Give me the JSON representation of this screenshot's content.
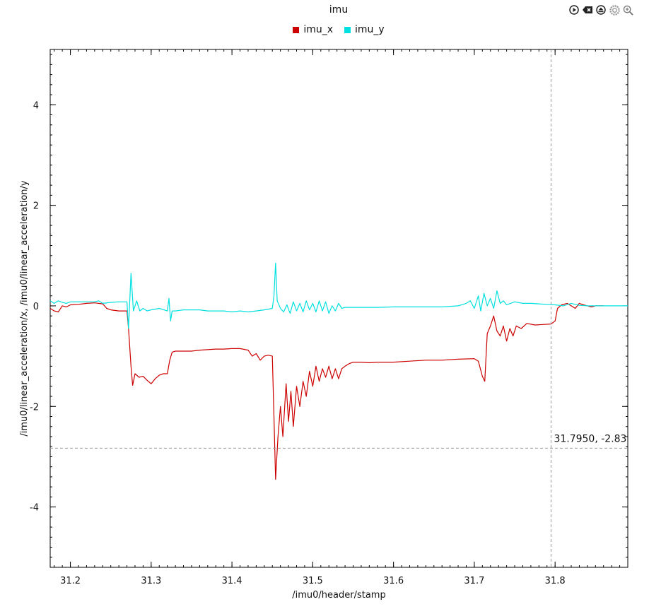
{
  "toolbar": {
    "icons": [
      "play-icon",
      "clear-icon",
      "eject-icon",
      "gear-icon",
      "zoom-icon"
    ]
  },
  "chart_data": {
    "type": "line",
    "title": "imu",
    "xlabel": "/imu0/header/stamp",
    "ylabel": "/imu0/linear_acceleration/x, /imu0/linear_acceleration/y",
    "xlim": [
      31.175,
      31.89
    ],
    "ylim": [
      -5.2,
      5.1
    ],
    "xticks": [
      31.2,
      31.3,
      31.4,
      31.5,
      31.6,
      31.7,
      31.8
    ],
    "xtick_labels": [
      "31.2",
      "31.3",
      "31.4",
      "31.5",
      "31.6",
      "31.7",
      "31.8"
    ],
    "yticks": [
      4,
      2,
      0,
      -2,
      -4
    ],
    "ytick_labels": [
      "4",
      "2",
      "0",
      "-2",
      "-4"
    ],
    "legend_position": "top-center",
    "grid": false,
    "crosshair": {
      "x": 31.795,
      "y": -2.83,
      "label": "31.7950, -2.83"
    },
    "series": [
      {
        "name": "imu_x",
        "color": "#cc0000",
        "points": [
          [
            31.175,
            -0.05
          ],
          [
            31.18,
            -0.1
          ],
          [
            31.185,
            -0.12
          ],
          [
            31.19,
            0.0
          ],
          [
            31.195,
            -0.02
          ],
          [
            31.2,
            0.02
          ],
          [
            31.21,
            0.03
          ],
          [
            31.22,
            0.05
          ],
          [
            31.23,
            0.06
          ],
          [
            31.24,
            0.04
          ],
          [
            31.245,
            -0.05
          ],
          [
            31.25,
            -0.08
          ],
          [
            31.26,
            -0.1
          ],
          [
            31.27,
            -0.1
          ],
          [
            31.272,
            -0.45
          ],
          [
            31.275,
            -1.2
          ],
          [
            31.277,
            -1.58
          ],
          [
            31.28,
            -1.35
          ],
          [
            31.285,
            -1.42
          ],
          [
            31.29,
            -1.4
          ],
          [
            31.295,
            -1.48
          ],
          [
            31.3,
            -1.55
          ],
          [
            31.305,
            -1.45
          ],
          [
            31.31,
            -1.38
          ],
          [
            31.315,
            -1.35
          ],
          [
            31.32,
            -1.35
          ],
          [
            31.323,
            -1.08
          ],
          [
            31.326,
            -0.92
          ],
          [
            31.33,
            -0.9
          ],
          [
            31.34,
            -0.9
          ],
          [
            31.35,
            -0.9
          ],
          [
            31.36,
            -0.88
          ],
          [
            31.37,
            -0.87
          ],
          [
            31.38,
            -0.86
          ],
          [
            31.39,
            -0.86
          ],
          [
            31.4,
            -0.85
          ],
          [
            31.41,
            -0.85
          ],
          [
            31.42,
            -0.88
          ],
          [
            31.425,
            -1.0
          ],
          [
            31.43,
            -0.95
          ],
          [
            31.435,
            -1.08
          ],
          [
            31.44,
            -1.0
          ],
          [
            31.445,
            -0.98
          ],
          [
            31.45,
            -1.0
          ],
          [
            31.452,
            -2.2
          ],
          [
            31.454,
            -3.45
          ],
          [
            31.457,
            -2.6
          ],
          [
            31.46,
            -2.0
          ],
          [
            31.463,
            -2.6
          ],
          [
            31.467,
            -1.55
          ],
          [
            31.47,
            -2.3
          ],
          [
            31.473,
            -1.7
          ],
          [
            31.476,
            -2.4
          ],
          [
            31.48,
            -1.6
          ],
          [
            31.484,
            -2.0
          ],
          [
            31.488,
            -1.5
          ],
          [
            31.492,
            -1.8
          ],
          [
            31.496,
            -1.3
          ],
          [
            31.5,
            -1.6
          ],
          [
            31.504,
            -1.2
          ],
          [
            31.508,
            -1.5
          ],
          [
            31.512,
            -1.25
          ],
          [
            31.516,
            -1.42
          ],
          [
            31.52,
            -1.2
          ],
          [
            31.524,
            -1.45
          ],
          [
            31.528,
            -1.25
          ],
          [
            31.532,
            -1.45
          ],
          [
            31.536,
            -1.25
          ],
          [
            31.54,
            -1.2
          ],
          [
            31.545,
            -1.15
          ],
          [
            31.55,
            -1.12
          ],
          [
            31.56,
            -1.12
          ],
          [
            31.57,
            -1.13
          ],
          [
            31.58,
            -1.12
          ],
          [
            31.6,
            -1.12
          ],
          [
            31.62,
            -1.1
          ],
          [
            31.64,
            -1.08
          ],
          [
            31.66,
            -1.08
          ],
          [
            31.68,
            -1.06
          ],
          [
            31.7,
            -1.05
          ],
          [
            31.705,
            -1.1
          ],
          [
            31.71,
            -1.4
          ],
          [
            31.713,
            -1.5
          ],
          [
            31.716,
            -0.55
          ],
          [
            31.72,
            -0.4
          ],
          [
            31.724,
            -0.2
          ],
          [
            31.728,
            -0.5
          ],
          [
            31.732,
            -0.6
          ],
          [
            31.736,
            -0.4
          ],
          [
            31.74,
            -0.7
          ],
          [
            31.744,
            -0.45
          ],
          [
            31.748,
            -0.6
          ],
          [
            31.752,
            -0.4
          ],
          [
            31.758,
            -0.45
          ],
          [
            31.765,
            -0.35
          ],
          [
            31.775,
            -0.38
          ],
          [
            31.785,
            -0.37
          ],
          [
            31.795,
            -0.36
          ],
          [
            31.8,
            -0.3
          ],
          [
            31.803,
            -0.05
          ],
          [
            31.808,
            0.02
          ],
          [
            31.815,
            0.05
          ],
          [
            31.82,
            0.0
          ],
          [
            31.825,
            -0.05
          ],
          [
            31.83,
            0.05
          ],
          [
            31.835,
            0.02
          ],
          [
            31.84,
            0.0
          ],
          [
            31.845,
            -0.02
          ],
          [
            31.85,
            0.0
          ],
          [
            31.86,
            0.0
          ]
        ]
      },
      {
        "name": "imu_y",
        "color": "#00e0e0",
        "points": [
          [
            31.175,
            0.1
          ],
          [
            31.18,
            0.05
          ],
          [
            31.185,
            0.1
          ],
          [
            31.19,
            0.07
          ],
          [
            31.195,
            0.05
          ],
          [
            31.2,
            0.08
          ],
          [
            31.21,
            0.08
          ],
          [
            31.22,
            0.08
          ],
          [
            31.23,
            0.08
          ],
          [
            31.235,
            0.1
          ],
          [
            31.24,
            0.05
          ],
          [
            31.25,
            0.07
          ],
          [
            31.26,
            0.08
          ],
          [
            31.27,
            0.08
          ],
          [
            31.272,
            -0.45
          ],
          [
            31.275,
            0.65
          ],
          [
            31.278,
            -0.1
          ],
          [
            31.282,
            0.1
          ],
          [
            31.286,
            -0.1
          ],
          [
            31.29,
            -0.05
          ],
          [
            31.295,
            -0.1
          ],
          [
            31.3,
            -0.08
          ],
          [
            31.31,
            -0.05
          ],
          [
            31.32,
            -0.1
          ],
          [
            31.322,
            0.15
          ],
          [
            31.324,
            -0.3
          ],
          [
            31.326,
            -0.1
          ],
          [
            31.33,
            -0.1
          ],
          [
            31.34,
            -0.08
          ],
          [
            31.35,
            -0.08
          ],
          [
            31.36,
            -0.08
          ],
          [
            31.37,
            -0.1
          ],
          [
            31.38,
            -0.1
          ],
          [
            31.39,
            -0.1
          ],
          [
            31.4,
            -0.12
          ],
          [
            31.41,
            -0.1
          ],
          [
            31.42,
            -0.12
          ],
          [
            31.43,
            -0.1
          ],
          [
            31.44,
            -0.08
          ],
          [
            31.45,
            -0.05
          ],
          [
            31.452,
            0.2
          ],
          [
            31.454,
            0.85
          ],
          [
            31.456,
            0.1
          ],
          [
            31.46,
            -0.05
          ],
          [
            31.464,
            -0.12
          ],
          [
            31.468,
            0.02
          ],
          [
            31.472,
            -0.15
          ],
          [
            31.476,
            0.08
          ],
          [
            31.48,
            -0.1
          ],
          [
            31.484,
            0.05
          ],
          [
            31.488,
            -0.12
          ],
          [
            31.492,
            0.1
          ],
          [
            31.496,
            -0.08
          ],
          [
            31.5,
            0.05
          ],
          [
            31.504,
            -0.12
          ],
          [
            31.508,
            0.1
          ],
          [
            31.512,
            -0.1
          ],
          [
            31.516,
            0.08
          ],
          [
            31.52,
            -0.15
          ],
          [
            31.524,
            0.0
          ],
          [
            31.528,
            -0.1
          ],
          [
            31.532,
            0.05
          ],
          [
            31.536,
            -0.05
          ],
          [
            31.54,
            -0.03
          ],
          [
            31.55,
            -0.03
          ],
          [
            31.56,
            -0.03
          ],
          [
            31.58,
            -0.03
          ],
          [
            31.6,
            -0.02
          ],
          [
            31.62,
            -0.02
          ],
          [
            31.64,
            -0.02
          ],
          [
            31.66,
            -0.02
          ],
          [
            31.68,
            0.0
          ],
          [
            31.69,
            0.05
          ],
          [
            31.695,
            0.1
          ],
          [
            31.7,
            -0.05
          ],
          [
            31.705,
            0.2
          ],
          [
            31.708,
            -0.1
          ],
          [
            31.712,
            0.25
          ],
          [
            31.716,
            0.0
          ],
          [
            31.72,
            0.15
          ],
          [
            31.724,
            -0.05
          ],
          [
            31.728,
            0.3
          ],
          [
            31.732,
            0.05
          ],
          [
            31.736,
            0.1
          ],
          [
            31.74,
            0.02
          ],
          [
            31.75,
            0.08
          ],
          [
            31.76,
            0.05
          ],
          [
            31.77,
            0.05
          ],
          [
            31.78,
            0.04
          ],
          [
            31.79,
            0.03
          ],
          [
            31.8,
            0.02
          ],
          [
            31.81,
            0.0
          ],
          [
            31.82,
            0.05
          ],
          [
            31.83,
            0.01
          ],
          [
            31.84,
            0.0
          ],
          [
            31.86,
            0.0
          ],
          [
            31.89,
            0.0
          ]
        ]
      }
    ]
  }
}
